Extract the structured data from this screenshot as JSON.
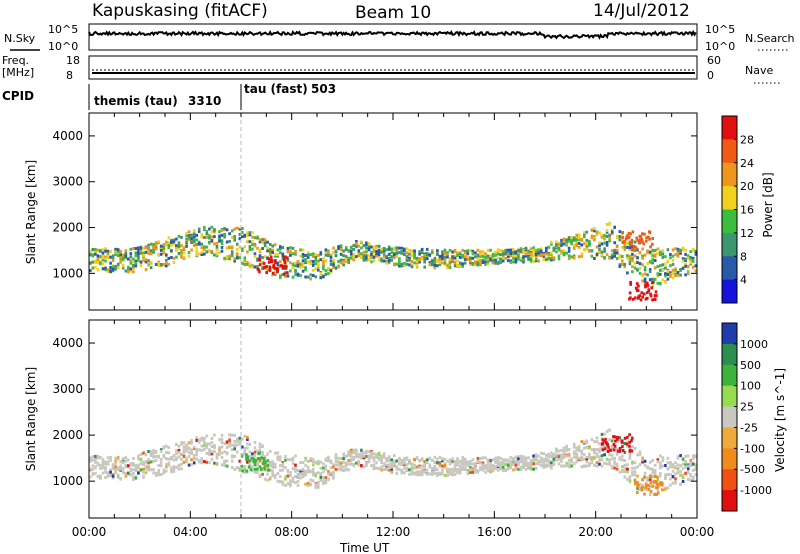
{
  "header": {
    "station": "Kapuskasing (fitACF)",
    "beam": "Beam 10",
    "date": "14/Jul/2012"
  },
  "noise_panel": {
    "left_label": "N.Sky",
    "left_ticks": [
      "10^5",
      "10^0"
    ],
    "right_label": "N.Search",
    "right_ticks": [
      "10^5",
      "10^0"
    ],
    "sky_level": 4.3
  },
  "freq_panel": {
    "left_label_top": "Freq.",
    "left_label_bottom": "[MHz]",
    "left_ticks": [
      "18",
      "8"
    ],
    "right_label": "Nave",
    "right_ticks": [
      "60",
      "0"
    ],
    "freq_mhz": 10
  },
  "cpid_panel": {
    "label": "CPID",
    "segments": [
      {
        "start_hour": 0,
        "end_hour": 6,
        "name": "themis (tau)",
        "id": "3310"
      },
      {
        "start_hour": 6,
        "end_hour": 24,
        "name": "tau (fast)",
        "id": "503"
      }
    ]
  },
  "power_panel": {
    "ylabel": "Slant Range [km]",
    "colorbar_label": "Power [dB]",
    "colorbar_ticks": [
      "28",
      "24",
      "20",
      "16",
      "12",
      "8",
      "4"
    ],
    "colorbar_colors": [
      "#e01010",
      "#f05a14",
      "#f0961e",
      "#f0d21e",
      "#3cbe3c",
      "#3c966e",
      "#285aaa",
      "#1414dc"
    ]
  },
  "velocity_panel": {
    "ylabel": "Slant Range [km]",
    "colorbar_label": "Velocity [m s^-1]",
    "colorbar_ticks": [
      "1000",
      "500",
      "100",
      "25",
      "-25",
      "-100",
      "-500",
      "-1000"
    ],
    "colorbar_colors": [
      "#1e3caa",
      "#2d8c50",
      "#3cb43c",
      "#96dc50",
      "#c8c8c0",
      "#f0aa3c",
      "#f08c1e",
      "#f05014",
      "#e01010"
    ]
  },
  "time_axis": {
    "label": "Time UT",
    "ticks": [
      "00:00",
      "04:00",
      "08:00",
      "12:00",
      "16:00",
      "20:00",
      "00:00"
    ]
  },
  "chart_data": {
    "type": "heatmap",
    "title": "Kapuskasing (fitACF)",
    "subtitle": "Beam 10",
    "xlabel": "Time UT",
    "ylabel": "Slant Range [km]",
    "x_range_hours": [
      0,
      24
    ],
    "ylim_km": [
      200,
      4500
    ],
    "y_ticks_km": [
      1000,
      2000,
      3000,
      4000
    ],
    "scatter_band": [
      {
        "hour": 0.0,
        "center_km": 1300,
        "half_width_km": 250
      },
      {
        "hour": 1.5,
        "center_km": 1250,
        "half_width_km": 250
      },
      {
        "hour": 3.0,
        "center_km": 1450,
        "half_width_km": 300
      },
      {
        "hour": 4.5,
        "center_km": 1700,
        "half_width_km": 300
      },
      {
        "hour": 6.0,
        "center_km": 1600,
        "half_width_km": 400
      },
      {
        "hour": 7.5,
        "center_km": 1250,
        "half_width_km": 350
      },
      {
        "hour": 9.0,
        "center_km": 1150,
        "half_width_km": 300
      },
      {
        "hour": 10.5,
        "center_km": 1500,
        "half_width_km": 200
      },
      {
        "hour": 12.0,
        "center_km": 1350,
        "half_width_km": 200
      },
      {
        "hour": 14.0,
        "center_km": 1300,
        "half_width_km": 200
      },
      {
        "hour": 16.0,
        "center_km": 1350,
        "half_width_km": 150
      },
      {
        "hour": 17.5,
        "center_km": 1400,
        "half_width_km": 150
      },
      {
        "hour": 19.0,
        "center_km": 1550,
        "half_width_km": 250
      },
      {
        "hour": 20.5,
        "center_km": 1700,
        "half_width_km": 400
      },
      {
        "hour": 22.0,
        "center_km": 1100,
        "half_width_km": 450
      },
      {
        "hour": 24.0,
        "center_km": 1300,
        "half_width_km": 250
      }
    ],
    "power_hotspots": [
      {
        "hour": 7.2,
        "range_km": 1150,
        "power_db": 28
      },
      {
        "hour": 21.6,
        "range_km": 1700,
        "power_db": 24
      },
      {
        "hour": 21.8,
        "range_km": 600,
        "power_db": 28
      }
    ],
    "velocity_hotspots": [
      {
        "hour": 6.5,
        "range_km": 1400,
        "velocity_ms": 200
      },
      {
        "hour": 20.8,
        "range_km": 1800,
        "velocity_ms": -800
      },
      {
        "hour": 22.0,
        "range_km": 900,
        "velocity_ms": -400
      }
    ]
  }
}
